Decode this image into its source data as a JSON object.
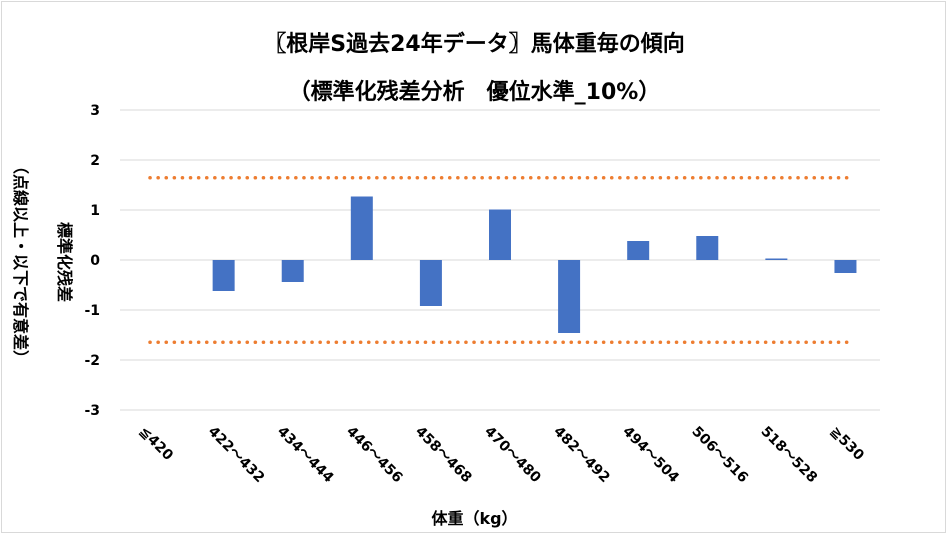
{
  "chart_data": {
    "type": "bar",
    "title": "〖根岸S過去24年データ〗馬体重毎の傾向",
    "subtitle": "（標準化残差分析　優位水準_10%）",
    "xlabel": "体重（kg）",
    "ylabel_line1": "標準化残差",
    "ylabel_line2": "（点線以上・以下で有意差）",
    "categories": [
      "≦420",
      "422～432",
      "434～444",
      "446～456",
      "458～468",
      "470～480",
      "482～492",
      "494～504",
      "506～516",
      "518～528",
      "≧530"
    ],
    "values": [
      0,
      -0.62,
      -0.44,
      1.27,
      -0.92,
      1.01,
      -1.46,
      0.38,
      0.48,
      0.03,
      -0.26
    ],
    "ylim": [
      -3,
      3
    ],
    "yticks": [
      "-3",
      "-2",
      "-1",
      "0",
      "1",
      "2",
      "3"
    ],
    "threshold": 1.645,
    "grid": true,
    "bar_color": "#4472c4",
    "threshold_color": "#ed7d31",
    "grid_color": "#d9d9d9"
  }
}
